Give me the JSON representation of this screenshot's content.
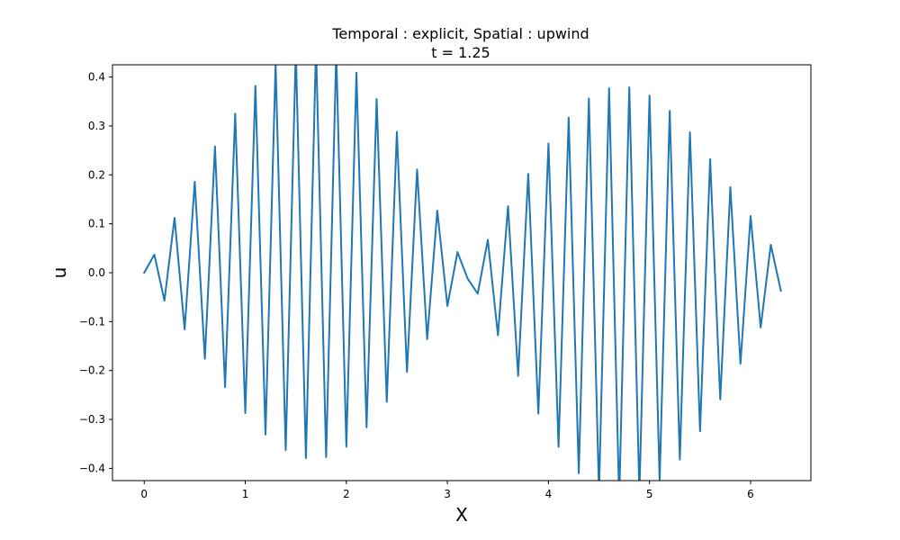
{
  "chart_data": {
    "type": "line",
    "title": "Temporal : explicit, Spatial : upwind",
    "subtitle": "t = 1.25",
    "xlabel": "X",
    "ylabel": "u",
    "xlim": [
      -0.314,
      6.597
    ],
    "ylim": [
      -0.425,
      0.425
    ],
    "xticks": [
      0,
      1,
      2,
      3,
      4,
      5,
      6
    ],
    "xtick_labels": [
      "0",
      "1",
      "2",
      "3",
      "4",
      "5",
      "6"
    ],
    "yticks": [
      -0.4,
      -0.3,
      -0.2,
      -0.1,
      0.0,
      0.1,
      0.2,
      0.3,
      0.4
    ],
    "ytick_labels": [
      "−0.4",
      "−0.3",
      "−0.2",
      "−0.1",
      "0.0",
      "0.1",
      "0.2",
      "0.3",
      "0.4"
    ],
    "grid": false,
    "legend": "none",
    "series": [
      {
        "color": "#1f77b4",
        "x": [
          0.0,
          0.1,
          0.2,
          0.3,
          0.4,
          0.5,
          0.6,
          0.7,
          0.8,
          0.9,
          1.0,
          1.1,
          1.2,
          1.3,
          1.4,
          1.5,
          1.6,
          1.7,
          1.8,
          1.9,
          2.0,
          2.1,
          2.2,
          2.3,
          2.4,
          2.5,
          2.6,
          2.7,
          2.8,
          2.9,
          3.0,
          3.1,
          3.2,
          3.3,
          3.4,
          3.5,
          3.6,
          3.7,
          3.8,
          3.9,
          4.0,
          4.1,
          4.2,
          4.3,
          4.4,
          4.5,
          4.6,
          4.7,
          4.8,
          4.9,
          5.0,
          5.1,
          5.2,
          5.3,
          5.4,
          5.5,
          5.6,
          5.7,
          5.8,
          5.9,
          6.0,
          6.1,
          6.2,
          6.3
        ],
        "values": [
          0.0,
          0.037,
          -0.057,
          0.112,
          -0.116,
          0.186,
          -0.176,
          0.258,
          -0.234,
          0.325,
          -0.287,
          0.382,
          -0.331,
          0.428,
          -0.363,
          0.455,
          -0.379,
          0.463,
          -0.377,
          0.451,
          -0.356,
          0.409,
          -0.316,
          0.355,
          -0.264,
          0.288,
          -0.203,
          0.211,
          -0.136,
          0.127,
          -0.068,
          0.042,
          -0.012,
          -0.043,
          0.067,
          -0.128,
          0.136,
          -0.211,
          0.202,
          -0.288,
          0.264,
          -0.356,
          0.317,
          -0.41,
          0.356,
          -0.45,
          0.377,
          -0.465,
          0.379,
          -0.452,
          0.362,
          -0.426,
          0.331,
          -0.382,
          0.287,
          -0.324,
          0.232,
          -0.259,
          0.175,
          -0.186,
          0.116,
          -0.112,
          0.057,
          -0.037
        ]
      }
    ]
  }
}
